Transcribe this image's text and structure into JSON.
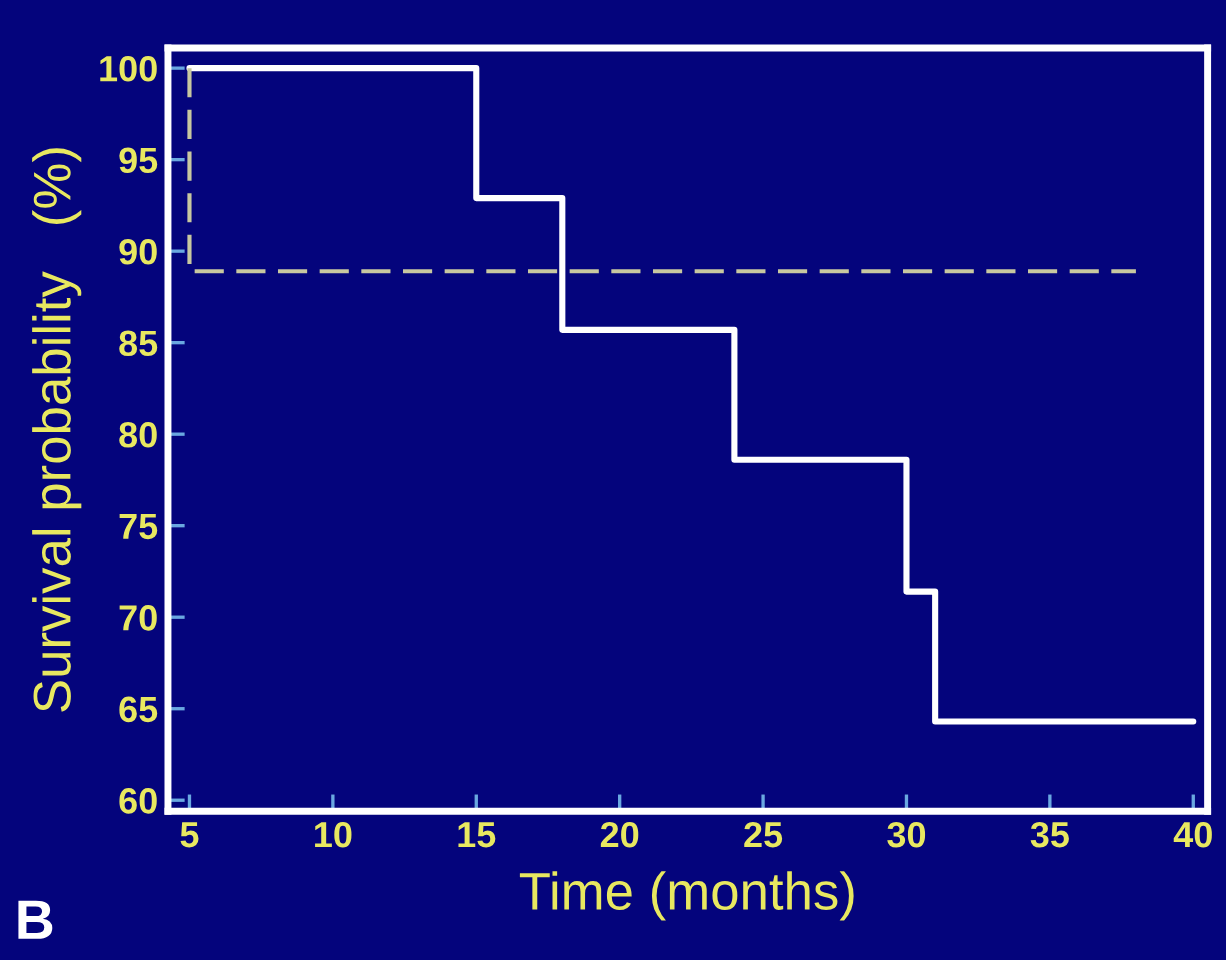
{
  "chart_data": {
    "type": "step",
    "xlabel": "Time (months)",
    "ylabel": "Survival probability   (%)",
    "annotations": [
      "B"
    ],
    "series": [
      {
        "color": "#ffffff",
        "x": [
          5,
          15,
          18,
          24,
          30,
          31,
          40
        ],
        "values": [
          100,
          92.9,
          85.7,
          78.6,
          71.4,
          64.3,
          64.3
        ],
        "line_style": "solid"
      },
      {
        "type": "line",
        "color": "#c8c8a0",
        "x": [
          5,
          5,
          38
        ],
        "values": [
          100,
          88.9,
          88.9
        ],
        "line_style": "dashed"
      }
    ],
    "xlim": [
      4.25,
      40.5
    ],
    "ylim": [
      59.4,
      101.1
    ],
    "xticks": [
      5,
      10,
      15,
      20,
      25,
      30,
      35,
      40
    ],
    "yticks": [
      60,
      65,
      70,
      75,
      80,
      85,
      90,
      95,
      100
    ],
    "grid": false,
    "legend": false
  }
}
